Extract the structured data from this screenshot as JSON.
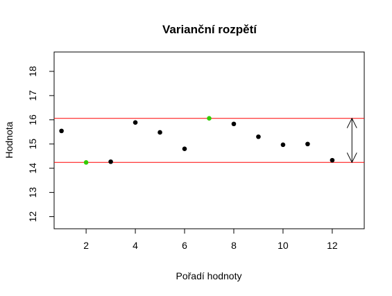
{
  "chart_data": {
    "type": "scatter",
    "title": "Varianční rozpětí",
    "xlabel": "Pořadí hodnoty",
    "ylabel": "Hodnota",
    "xlim": [
      0.7,
      13.3
    ],
    "ylim": [
      11.5,
      18.8
    ],
    "xticks": [
      2,
      4,
      6,
      8,
      10,
      12
    ],
    "yticks": [
      12,
      13,
      14,
      15,
      16,
      17,
      18
    ],
    "grid": false,
    "x": [
      1,
      2,
      3,
      4,
      5,
      6,
      7,
      8,
      9,
      10,
      11,
      12
    ],
    "y": [
      15.54,
      14.24,
      14.27,
      15.89,
      15.48,
      14.8,
      16.06,
      15.83,
      15.3,
      14.97,
      15.0,
      14.33
    ],
    "point_color": "#000000",
    "highlight_color": "#33cc00",
    "highlight_indices": [
      1,
      6
    ],
    "reference_lines": [
      {
        "y": 16.06,
        "color": "#ff0000"
      },
      {
        "y": 14.24,
        "color": "#ff0000"
      }
    ],
    "range_arrow": {
      "x": 12.8,
      "from": 14.24,
      "to": 16.06,
      "color": "#000000"
    }
  }
}
